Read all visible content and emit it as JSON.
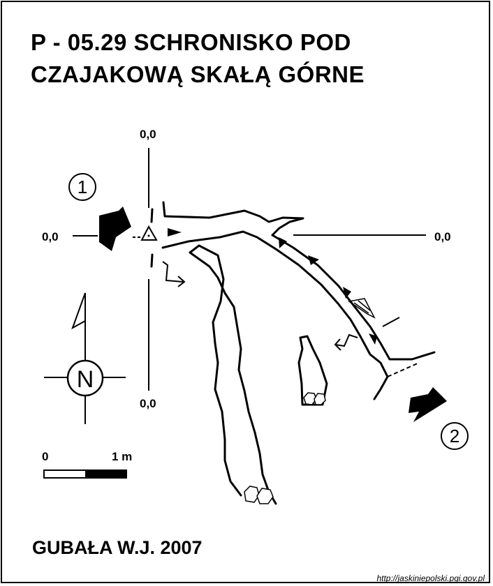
{
  "title_line1": "P - 05.29  SCHRONISKO POD",
  "title_line2": "CZAJAKOWĄ SKAŁĄ GÓRNE",
  "author": "GUBAŁA W.J. 2007",
  "url": "http://jaskiniepolski.pgi.gov.pl",
  "datum_labels": {
    "top": "0,0",
    "left": "0,0",
    "right": "0,0",
    "bottom": "0,0"
  },
  "entrance_numbers": {
    "first": "1",
    "second": "2"
  },
  "north_symbol": "N",
  "scale_bar": {
    "zero_label": "0",
    "end_label": "1 m"
  },
  "icons": {
    "entrance": "arrow-icon",
    "north": "north-arrow-icon",
    "datum": "triangle-datum-icon",
    "blocks": "rock-block-icon"
  },
  "colors": {
    "ink": "#000000",
    "paper": "#ffffff"
  }
}
